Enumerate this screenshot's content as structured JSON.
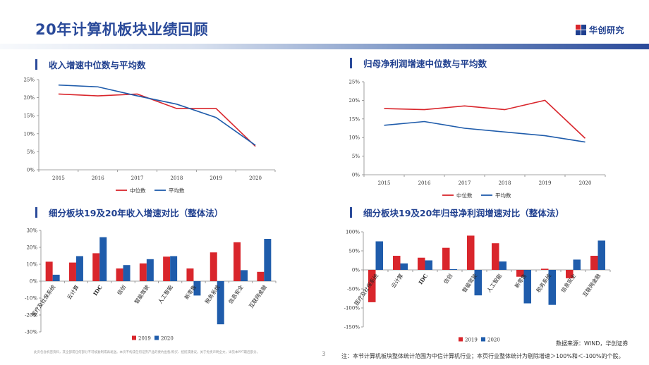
{
  "header": {
    "title": "20年计算机板块业绩回顾",
    "logo_text": "华创研究"
  },
  "colors": {
    "red": "#d9262c",
    "blue": "#1f5cab",
    "accent": "#2a4a9a"
  },
  "chart_data": [
    {
      "id": "revenue-growth",
      "type": "line",
      "title": "收入增速中位数与平均数",
      "x": [
        "2015",
        "2016",
        "2017",
        "2018",
        "2019",
        "2020"
      ],
      "ylim": [
        0,
        25
      ],
      "yticks": [
        "0%",
        "5%",
        "10%",
        "15%",
        "20%",
        "25%"
      ],
      "series": [
        {
          "name": "中位数",
          "color": "#d9262c",
          "values": [
            21.0,
            20.5,
            21.0,
            17.0,
            17.0,
            6.5
          ]
        },
        {
          "name": "平均数",
          "color": "#1f5cab",
          "values": [
            23.5,
            23.0,
            20.5,
            18.2,
            14.5,
            6.8
          ]
        }
      ],
      "legend": "bottom"
    },
    {
      "id": "profit-growth",
      "type": "line",
      "title": "归母净利润增速中位数与平均数",
      "x": [
        "2015",
        "2016",
        "2017",
        "2018",
        "2019",
        "2020"
      ],
      "ylim": [
        0,
        25
      ],
      "yticks": [
        "0%",
        "5%",
        "10%",
        "15%",
        "20%",
        "25%"
      ],
      "series": [
        {
          "name": "中位数",
          "color": "#d9262c",
          "values": [
            17.8,
            17.5,
            18.5,
            17.5,
            20.0,
            9.8
          ]
        },
        {
          "name": "平均数",
          "color": "#1f5cab",
          "values": [
            13.3,
            14.3,
            12.5,
            11.5,
            10.5,
            8.8
          ]
        }
      ],
      "legend": "bottom"
    },
    {
      "id": "segment-revenue",
      "type": "bar",
      "title": "细分板块19及20年收入增速对比（整体法）",
      "categories": [
        "医疗及社保系统",
        "云计算",
        "IDC",
        "信创",
        "智能驾驶",
        "人工智能",
        "新零售",
        "税务系统",
        "信息安全",
        "互联网金融"
      ],
      "ylim": [
        -30,
        30
      ],
      "yticks": [
        "-30%",
        "-20%",
        "-10%",
        "0%",
        "10%",
        "20%",
        "30%"
      ],
      "series": [
        {
          "name": "2019",
          "color": "#d9262c",
          "values": [
            11.5,
            11.0,
            16.5,
            7.5,
            10.5,
            14.5,
            7.5,
            17.0,
            23.0,
            5.5
          ]
        },
        {
          "name": "2020",
          "color": "#1f5cab",
          "values": [
            3.8,
            14.8,
            26.0,
            9.5,
            13.0,
            14.8,
            -8.5,
            -25.5,
            6.5,
            25.0
          ]
        }
      ],
      "legend": "bottom"
    },
    {
      "id": "segment-profit",
      "type": "bar",
      "title": "细分板块19及20年归母净利润增速对比（整体法）",
      "categories": [
        "医疗及社保系统",
        "云计算",
        "IDC",
        "信创",
        "智能驾驶",
        "人工智能",
        "新零售",
        "税务系统",
        "信息安全",
        "互联网金融"
      ],
      "ylim": [
        -150,
        100
      ],
      "yticks": [
        "-150%",
        "-100%",
        "-50%",
        "0%",
        "50%",
        "100%"
      ],
      "series": [
        {
          "name": "2019",
          "color": "#d9262c",
          "values": [
            -85,
            37,
            32,
            58,
            90,
            70,
            -18,
            3,
            -22,
            37
          ]
        },
        {
          "name": "2020",
          "color": "#1f5cab",
          "values": [
            75,
            17,
            25,
            2,
            -67,
            22,
            -88,
            -92,
            27,
            77
          ]
        }
      ],
      "legend": "bottom"
    }
  ],
  "footer": {
    "source": "数据来源：WIND，华创证券",
    "disclaimer": "此页包含机密资料，其全部或任何部分不可被复制或再发送。本页不构成任何证券产品的要约出售/购买、招揽或建议。关于免责声明全文，详见本PPT最后部分。",
    "page": "3",
    "note": "注：本节计算机板块整体统计范围为中信计算机行业；本页行业整体统计为剔除增速＞100%和＜-100%的个股。"
  }
}
